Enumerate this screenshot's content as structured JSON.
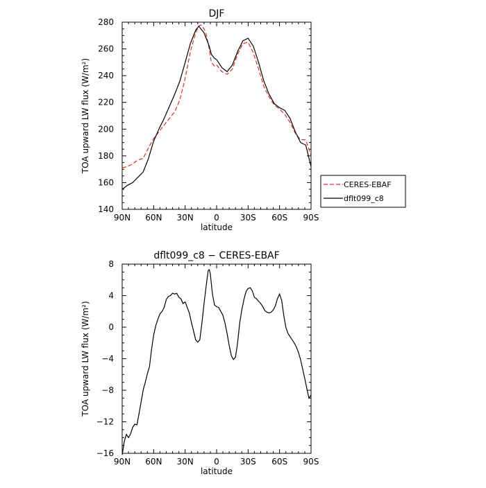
{
  "chart_data": [
    {
      "type": "line",
      "title": "DJF",
      "xlabel": "latitude",
      "ylabel": "TOA upward LW flux (W/m²)",
      "xlim": [
        90,
        -90
      ],
      "ylim": [
        140,
        280
      ],
      "x_ticks": [
        {
          "value": 90,
          "label": "90N"
        },
        {
          "value": 60,
          "label": "60N"
        },
        {
          "value": 30,
          "label": "30N"
        },
        {
          "value": 0,
          "label": "0"
        },
        {
          "value": -30,
          "label": "30S"
        },
        {
          "value": -60,
          "label": "60S"
        },
        {
          "value": -90,
          "label": "90S"
        }
      ],
      "y_ticks": [
        {
          "value": 140,
          "label": "140"
        },
        {
          "value": 160,
          "label": "160"
        },
        {
          "value": 180,
          "label": "180"
        },
        {
          "value": 200,
          "label": "200"
        },
        {
          "value": 220,
          "label": "220"
        },
        {
          "value": 240,
          "label": "240"
        },
        {
          "value": 260,
          "label": "260"
        },
        {
          "value": 280,
          "label": "280"
        }
      ],
      "legend_position": "right",
      "series": [
        {
          "name": "CERES-EBAF",
          "color": "#e8272a",
          "dash": "dashed",
          "x": [
            90,
            85,
            80,
            75,
            70,
            65,
            60,
            55,
            50,
            45,
            40,
            35,
            30,
            25,
            20,
            17,
            15,
            12,
            10,
            7,
            5,
            2,
            0,
            -5,
            -10,
            -15,
            -20,
            -25,
            -30,
            -35,
            -40,
            -45,
            -50,
            -55,
            -60,
            -65,
            -70,
            -75,
            -80,
            -85,
            -90
          ],
          "y": [
            171,
            172,
            174,
            177,
            178,
            186,
            193,
            198,
            203,
            208,
            213,
            222,
            238,
            258,
            272,
            277,
            278,
            275,
            271,
            260,
            250,
            247,
            248,
            243,
            241,
            245,
            256,
            264,
            265,
            257,
            245,
            232,
            224,
            218,
            215,
            211,
            205,
            197,
            192,
            192,
            180
          ]
        },
        {
          "name": "dflt099_c8",
          "color": "#000000",
          "dash": "solid",
          "x": [
            90,
            85,
            80,
            75,
            70,
            65,
            60,
            55,
            50,
            45,
            40,
            35,
            30,
            25,
            20,
            17,
            15,
            12,
            10,
            7,
            5,
            2,
            0,
            -5,
            -10,
            -15,
            -20,
            -25,
            -30,
            -35,
            -40,
            -45,
            -50,
            -55,
            -60,
            -65,
            -70,
            -75,
            -80,
            -85,
            -90
          ],
          "y": [
            155,
            158,
            160,
            164,
            168,
            178,
            191,
            200,
            208,
            217,
            226,
            236,
            250,
            264,
            274,
            277,
            275,
            272,
            268,
            262,
            256,
            253,
            252,
            246,
            243,
            248,
            258,
            266,
            268,
            262,
            250,
            236,
            226,
            219,
            216,
            214,
            208,
            198,
            190,
            188,
            172
          ]
        }
      ]
    },
    {
      "type": "line",
      "title": "dflt099_c8 − CERES-EBAF",
      "xlabel": "latitude",
      "ylabel": "TOA upward LW flux (W/m²)",
      "xlim": [
        90,
        -90
      ],
      "ylim": [
        -16,
        8
      ],
      "x_ticks": [
        {
          "value": 90,
          "label": "90N"
        },
        {
          "value": 60,
          "label": "60N"
        },
        {
          "value": 30,
          "label": "30N"
        },
        {
          "value": 0,
          "label": "0"
        },
        {
          "value": -30,
          "label": "30S"
        },
        {
          "value": -60,
          "label": "60S"
        },
        {
          "value": -90,
          "label": "90S"
        }
      ],
      "y_ticks": [
        {
          "value": -16,
          "label": "−16"
        },
        {
          "value": -12,
          "label": "−12"
        },
        {
          "value": -8,
          "label": "−8"
        },
        {
          "value": -4,
          "label": "−4"
        },
        {
          "value": 0,
          "label": "0"
        },
        {
          "value": 4,
          "label": "4"
        },
        {
          "value": 8,
          "label": "8"
        }
      ],
      "series": [
        {
          "name": "",
          "color": "#000000",
          "dash": "solid",
          "x": [
            90,
            88,
            86,
            84,
            82,
            80,
            78,
            76,
            74,
            72,
            70,
            68,
            66,
            64,
            62,
            60,
            58,
            56,
            54,
            52,
            50,
            48,
            46,
            44,
            42,
            40,
            38,
            36,
            34,
            32,
            30,
            28,
            26,
            24,
            22,
            20,
            18,
            16,
            14,
            12,
            10,
            8,
            7,
            6,
            5,
            4,
            2,
            0,
            -2,
            -4,
            -6,
            -8,
            -10,
            -12,
            -14,
            -16,
            -18,
            -20,
            -22,
            -24,
            -26,
            -28,
            -30,
            -32,
            -34,
            -36,
            -38,
            -40,
            -42,
            -44,
            -46,
            -48,
            -50,
            -52,
            -54,
            -56,
            -58,
            -60,
            -62,
            -64,
            -66,
            -68,
            -70,
            -72,
            -74,
            -76,
            -78,
            -80,
            -82,
            -84,
            -86,
            -88,
            -90
          ],
          "y": [
            -16.2,
            -14.5,
            -13.6,
            -14.0,
            -13.5,
            -12.7,
            -12.3,
            -12.4,
            -11.0,
            -9.5,
            -8.0,
            -7.0,
            -5.9,
            -5.0,
            -2.8,
            -1.0,
            0.2,
            1.0,
            1.7,
            2.0,
            2.5,
            3.5,
            3.9,
            4.0,
            4.3,
            4.2,
            4.3,
            3.8,
            3.6,
            3.0,
            3.2,
            2.5,
            1.8,
            0.6,
            -0.5,
            -1.6,
            -1.9,
            -1.6,
            0.5,
            3.0,
            5.2,
            7.2,
            7.3,
            6.8,
            5.5,
            4.2,
            2.8,
            2.6,
            2.5,
            2.0,
            1.5,
            0.5,
            -0.8,
            -2.3,
            -3.6,
            -4.1,
            -3.8,
            -2.0,
            0.5,
            2.2,
            3.5,
            4.5,
            4.9,
            5.0,
            4.6,
            3.8,
            3.6,
            3.3,
            3.0,
            2.6,
            2.1,
            1.9,
            1.8,
            1.9,
            2.2,
            2.7,
            3.6,
            4.2,
            3.4,
            1.5,
            0.0,
            -0.8,
            -1.2,
            -1.6,
            -2.0,
            -2.5,
            -3.2,
            -4.1,
            -5.3,
            -6.5,
            -7.8,
            -9.0,
            -8.6
          ]
        }
      ]
    }
  ]
}
